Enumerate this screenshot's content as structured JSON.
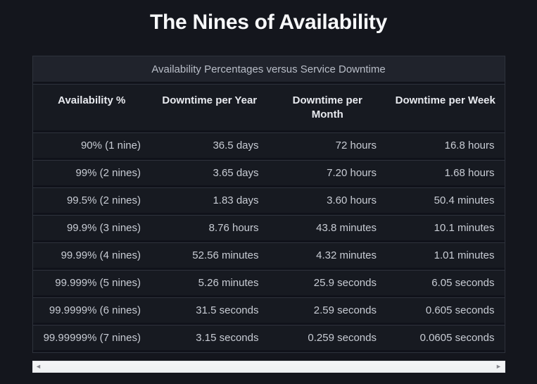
{
  "page": {
    "title": "The Nines of Availability"
  },
  "table": {
    "caption": "Availability Percentages versus Service Downtime",
    "columns": [
      "Availability %",
      "Downtime per Year",
      "Downtime per Month",
      "Downtime per Week"
    ],
    "rows": [
      [
        "90% (1 nine)",
        "36.5 days",
        "72 hours",
        "16.8 hours"
      ],
      [
        "99% (2 nines)",
        "3.65 days",
        "7.20 hours",
        "1.68 hours"
      ],
      [
        "99.5% (2 nines)",
        "1.83 days",
        "3.60 hours",
        "50.4 minutes"
      ],
      [
        "99.9% (3 nines)",
        "8.76 hours",
        "43.8 minutes",
        "10.1 minutes"
      ],
      [
        "99.99% (4 nines)",
        "52.56 minutes",
        "4.32 minutes",
        "1.01 minutes"
      ],
      [
        "99.999% (5 nines)",
        "5.26 minutes",
        "25.9 seconds",
        "6.05 seconds"
      ],
      [
        "99.9999% (6 nines)",
        "31.5 seconds",
        "2.59 seconds",
        "0.605 seconds"
      ],
      [
        "99.99999% (7 nines)",
        "3.15 seconds",
        "0.259 seconds",
        "0.0605 seconds"
      ]
    ]
  },
  "scrollbar": {
    "left_arrow": "◄",
    "right_arrow": "►"
  },
  "colors": {
    "page_bg": "#14161d",
    "row_bg": "#171a21",
    "caption_bg": "#20232c",
    "border": "#2e323c",
    "title_text": "#f7f8fa",
    "cell_text": "#c8ccd4",
    "header_text": "#e8eaef",
    "caption_text": "#b9bec8",
    "scrollbar_track": "#f1f2f4",
    "scrollbar_arrow": "#85858d"
  }
}
